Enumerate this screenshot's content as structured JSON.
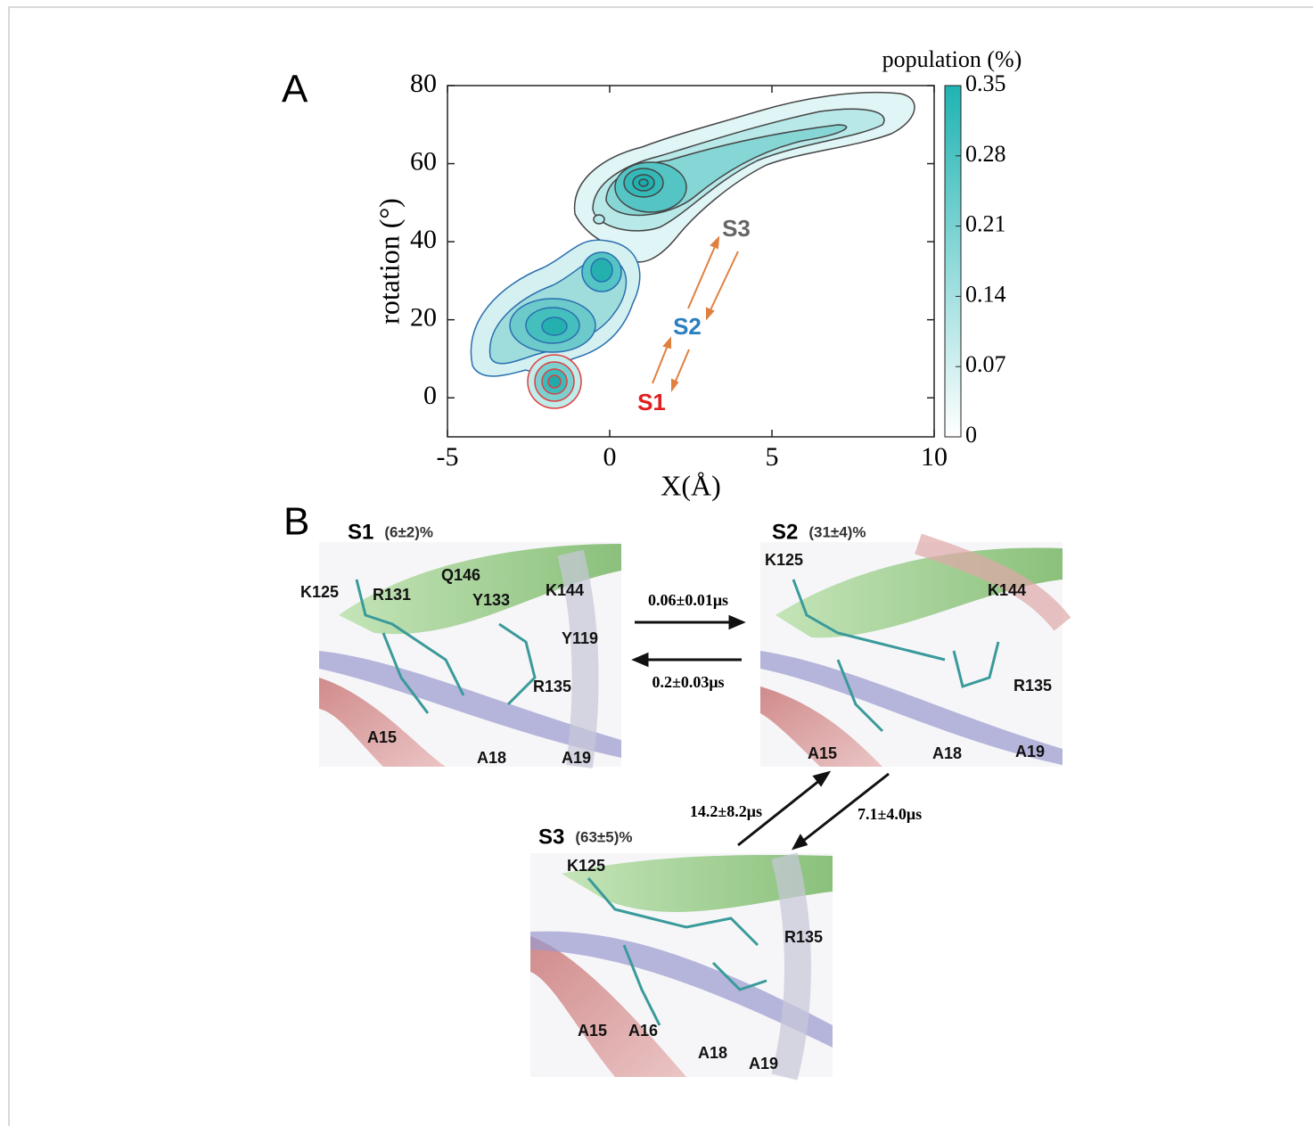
{
  "chart_data": {
    "type": "contour",
    "panel_label": "A",
    "x_label": "X(Å)",
    "y_label": "rotation (°)",
    "xlim": [
      -5,
      10
    ],
    "ylim": [
      -10,
      80
    ],
    "xticks": [
      -5,
      0,
      5,
      10
    ],
    "yticks": [
      0,
      20,
      40,
      60,
      80
    ],
    "colorbar": {
      "label": "population (%)",
      "lim": [
        0,
        0.35
      ],
      "ticks": [
        0,
        0.07,
        0.14,
        0.21,
        0.28,
        0.35
      ],
      "colors": [
        "#ffffff",
        "#1fb3b3"
      ]
    },
    "states": [
      {
        "name": "S3",
        "color": "#666666"
      },
      {
        "name": "S2",
        "color": "#2a7fc0"
      },
      {
        "name": "S1",
        "color": "#e02020"
      }
    ]
  },
  "panel_b": {
    "label": "B",
    "states": [
      {
        "name": "S1",
        "population": "(6±2)%",
        "residues": [
          "K125",
          "R131",
          "Q146",
          "Y133",
          "K144",
          "Y119",
          "R135",
          "A15",
          "A18",
          "A19"
        ]
      },
      {
        "name": "S2",
        "population": "(31±4)%",
        "residues": [
          "K125",
          "K144",
          "R135",
          "A15",
          "A18",
          "A19"
        ]
      },
      {
        "name": "S3",
        "population": "(63±5)%",
        "residues": [
          "K125",
          "R135",
          "A15",
          "A16",
          "A18",
          "A19"
        ]
      }
    ],
    "rates": [
      "0.06±0.01μs",
      "0.2±0.03μs",
      "14.2±8.2μs",
      "7.1±4.0μs"
    ]
  }
}
